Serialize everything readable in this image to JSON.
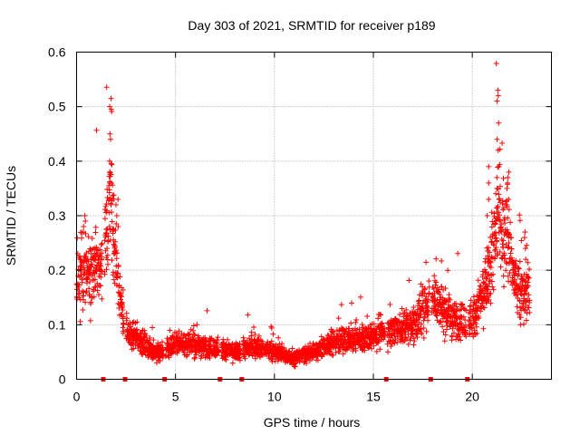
{
  "chart_data": {
    "type": "scatter",
    "title": "Day 303 of 2021, SRMTID for receiver p189",
    "xlabel": "GPS time / hours",
    "ylabel": "SRMTID / TECUs",
    "xlim": [
      0,
      24
    ],
    "ylim": [
      0,
      0.6
    ],
    "xticks": [
      0,
      5,
      10,
      15,
      20
    ],
    "xtick_labels": [
      "0",
      "5",
      "10",
      "15",
      "20"
    ],
    "yticks": [
      0,
      0.1,
      0.2,
      0.3,
      0.4,
      0.5,
      0.6
    ],
    "ytick_labels": [
      "0",
      "0.1",
      "0.2",
      "0.3",
      "0.4",
      "0.5",
      "0.6"
    ],
    "grid": true,
    "marker_color": "#ff0000",
    "marker": "plus",
    "data_gap_markers_x": [
      1.35,
      2.45,
      4.45,
      7.25,
      8.35,
      15.65,
      17.9,
      19.75
    ],
    "series": [
      {
        "name": "SRMTID",
        "profile": [
          [
            0.0,
            0.16
          ],
          [
            0.3,
            0.19
          ],
          [
            0.6,
            0.2
          ],
          [
            0.9,
            0.21
          ],
          [
            1.2,
            0.2
          ],
          [
            1.4,
            0.22
          ],
          [
            1.6,
            0.3
          ],
          [
            1.75,
            0.38
          ],
          [
            1.9,
            0.24
          ],
          [
            2.1,
            0.19
          ],
          [
            2.3,
            0.12
          ],
          [
            2.6,
            0.08
          ],
          [
            3.0,
            0.08
          ],
          [
            3.5,
            0.06
          ],
          [
            4.0,
            0.05
          ],
          [
            4.5,
            0.05
          ],
          [
            5.0,
            0.07
          ],
          [
            6.0,
            0.06
          ],
          [
            7.0,
            0.06
          ],
          [
            8.0,
            0.05
          ],
          [
            9.0,
            0.06
          ],
          [
            10.0,
            0.05
          ],
          [
            11.0,
            0.04
          ],
          [
            12.0,
            0.05
          ],
          [
            13.0,
            0.07
          ],
          [
            14.0,
            0.07
          ],
          [
            15.0,
            0.08
          ],
          [
            16.0,
            0.09
          ],
          [
            17.0,
            0.1
          ],
          [
            18.0,
            0.15
          ],
          [
            18.5,
            0.13
          ],
          [
            19.0,
            0.11
          ],
          [
            19.5,
            0.11
          ],
          [
            20.0,
            0.11
          ],
          [
            20.5,
            0.15
          ],
          [
            21.0,
            0.22
          ],
          [
            21.3,
            0.3
          ],
          [
            21.5,
            0.27
          ],
          [
            21.8,
            0.26
          ],
          [
            22.2,
            0.17
          ],
          [
            22.6,
            0.15
          ],
          [
            22.9,
            0.16
          ]
        ],
        "spikes": [
          {
            "x": 1.7,
            "values": [
              0.515,
              0.5,
              0.495,
              0.45,
              0.44,
              0.4,
              0.36,
              0.33,
              0.32,
              0.28
            ]
          },
          {
            "x": 21.3,
            "values": [
              0.53,
              0.52,
              0.51,
              0.47,
              0.44,
              0.42,
              0.39,
              0.37,
              0.35,
              0.33
            ]
          },
          {
            "x": 21.8,
            "values": [
              0.38,
              0.37,
              0.36,
              0.35,
              0.33,
              0.32
            ]
          },
          {
            "x": 20.8,
            "values": [
              0.39,
              0.36,
              0.33,
              0.3
            ]
          },
          {
            "x": 2.05,
            "values": [
              0.33,
              0.32,
              0.3,
              0.28
            ]
          },
          {
            "x": 22.7,
            "values": [
              0.27,
              0.26,
              0.24,
              0.22
            ]
          },
          {
            "x": 0.4,
            "values": [
              0.3,
              0.29,
              0.28,
              0.27
            ]
          }
        ]
      }
    ]
  }
}
